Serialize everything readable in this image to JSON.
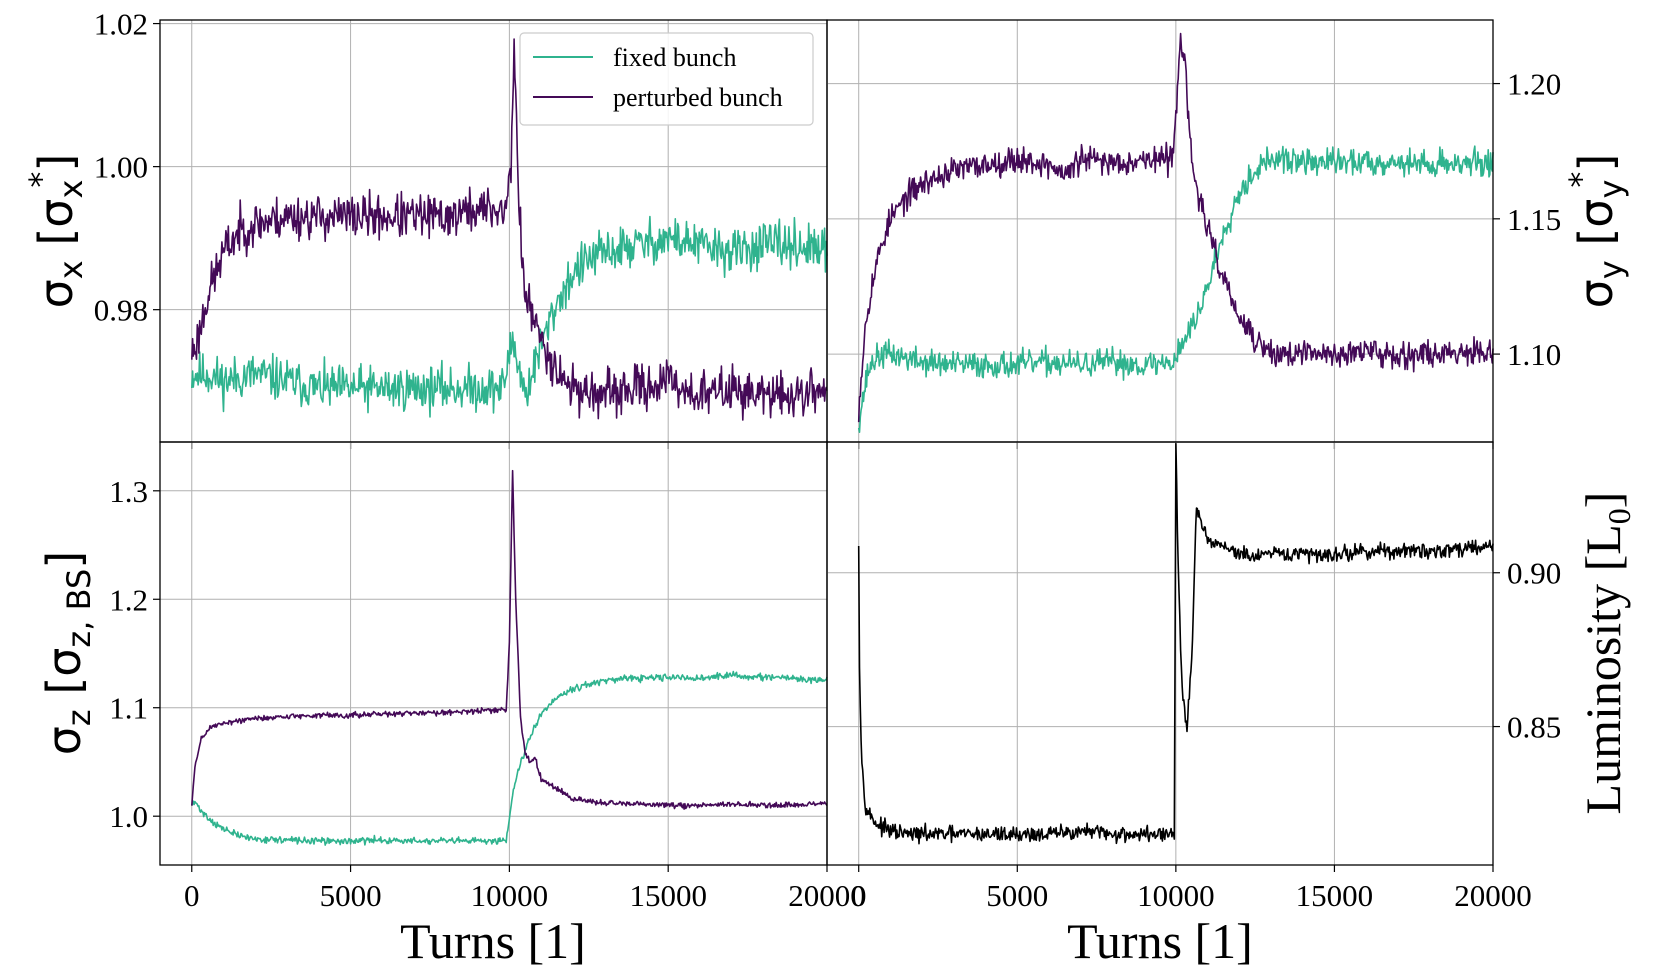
{
  "colors": {
    "fixed": "#2fb38e",
    "perturbed": "#440a57",
    "luminosity": "#000000"
  },
  "legend": {
    "fixed": "fixed bunch",
    "perturbed": "perturbed bunch"
  },
  "chart_data": [
    {
      "type": "line",
      "panel": "top-left",
      "ylabel_sym": "σ",
      "ylabel_sub": "x",
      "ylabel_unit": "σ",
      "ylabel_unit_sub": "x",
      "ylabel_unit_sup": "*",
      "xlim": [
        -1000,
        20000
      ],
      "ylim": [
        0.9615,
        1.0205
      ],
      "xticks": [
        0,
        5000,
        10000,
        15000,
        20000
      ],
      "yticks": [
        0.98,
        1.0,
        1.02
      ],
      "ytick_labels": [
        "0.98",
        "1.00",
        "1.02"
      ],
      "legend_position": "top-right",
      "series": [
        {
          "name": "fixed bunch",
          "color_key": "fixed",
          "x": [
            0,
            500,
            1000,
            2000,
            3000,
            4000,
            5000,
            6000,
            7000,
            8000,
            9000,
            9800,
            10100,
            10500,
            11000,
            11500,
            12000,
            12500,
            13000,
            14000,
            15000,
            16000,
            17000,
            18000,
            19000,
            20000
          ],
          "y": [
            0.971,
            0.971,
            0.97,
            0.971,
            0.97,
            0.969,
            0.969,
            0.969,
            0.969,
            0.969,
            0.969,
            0.969,
            0.976,
            0.968,
            0.975,
            0.981,
            0.985,
            0.987,
            0.988,
            0.989,
            0.99,
            0.989,
            0.988,
            0.989,
            0.989,
            0.988
          ],
          "noise": 0.0022,
          "seed": 11
        },
        {
          "name": "perturbed bunch",
          "color_key": "perturbed",
          "x": [
            0,
            200,
            500,
            1000,
            1500,
            2000,
            3000,
            4000,
            5000,
            6000,
            7000,
            8000,
            9000,
            9900,
            10050,
            10150,
            10300,
            10500,
            10800,
            11200,
            11600,
            12000,
            13000,
            14000,
            15000,
            16000,
            17000,
            18000,
            19000,
            20000
          ],
          "y": [
            0.974,
            0.976,
            0.982,
            0.988,
            0.991,
            0.992,
            0.993,
            0.993,
            0.993,
            0.993,
            0.993,
            0.993,
            0.994,
            0.994,
            1.0,
            1.018,
            0.994,
            0.982,
            0.978,
            0.974,
            0.971,
            0.969,
            0.968,
            0.969,
            0.97,
            0.968,
            0.969,
            0.968,
            0.968,
            0.969
          ],
          "noise": 0.0022,
          "seed": 23
        }
      ]
    },
    {
      "type": "line",
      "panel": "top-right",
      "ylabel_sym": "σ",
      "ylabel_sub": "y",
      "ylabel_unit": "σ",
      "ylabel_unit_sub": "y",
      "ylabel_unit_sup": "*",
      "xlim": [
        -1000,
        20000
      ],
      "ylim": [
        1.0675,
        1.2235
      ],
      "xticks": [
        0,
        5000,
        10000,
        15000,
        20000
      ],
      "yticks": [
        1.1,
        1.15,
        1.2
      ],
      "ytick_labels": [
        "1.10",
        "1.15",
        "1.20"
      ],
      "series": [
        {
          "name": "fixed bunch",
          "color_key": "fixed",
          "x": [
            0,
            150,
            300,
            500,
            800,
            1000,
            2000,
            3000,
            4000,
            5000,
            6000,
            7000,
            8000,
            9000,
            9900,
            10200,
            10600,
            11000,
            11500,
            12000,
            12500,
            13000,
            14000,
            15000,
            16000,
            17000,
            18000,
            19000,
            20000
          ],
          "y": [
            1.075,
            1.085,
            1.094,
            1.098,
            1.1,
            1.1,
            1.097,
            1.096,
            1.096,
            1.096,
            1.097,
            1.096,
            1.097,
            1.096,
            1.097,
            1.104,
            1.112,
            1.125,
            1.145,
            1.16,
            1.168,
            1.172,
            1.171,
            1.171,
            1.171,
            1.171,
            1.17,
            1.171,
            1.17
          ],
          "noise": 0.0035,
          "seed": 37
        },
        {
          "name": "perturbed bunch",
          "color_key": "perturbed",
          "x": [
            0,
            100,
            200,
            400,
            700,
            1000,
            1500,
            2000,
            3000,
            4000,
            5000,
            6000,
            6500,
            7000,
            8000,
            9000,
            9900,
            10050,
            10150,
            10300,
            10500,
            10800,
            11200,
            11700,
            12000,
            12500,
            13000,
            14000,
            15000,
            16000,
            17000,
            18000,
            19000,
            20000
          ],
          "y": [
            1.08,
            1.095,
            1.11,
            1.125,
            1.14,
            1.15,
            1.158,
            1.163,
            1.168,
            1.17,
            1.172,
            1.17,
            1.166,
            1.172,
            1.171,
            1.172,
            1.172,
            1.2,
            1.218,
            1.205,
            1.17,
            1.155,
            1.138,
            1.122,
            1.113,
            1.105,
            1.1,
            1.1,
            1.1,
            1.101,
            1.1,
            1.1,
            1.101,
            1.102
          ],
          "noise": 0.0035,
          "seed": 53
        }
      ]
    },
    {
      "type": "line",
      "panel": "bottom-left",
      "ylabel_sym": "σ",
      "ylabel_sub": "z",
      "ylabel_unit": "σ",
      "ylabel_unit_sub": "z, BS",
      "ylabel_unit_sup": "",
      "xlabel": "Turns [1]",
      "xlim": [
        -1000,
        20000
      ],
      "ylim": [
        0.955,
        1.345
      ],
      "xticks": [
        0,
        5000,
        10000,
        15000,
        20000
      ],
      "xtick_labels": [
        "0",
        "5000",
        "10000",
        "15000",
        "20000"
      ],
      "yticks": [
        1.0,
        1.1,
        1.2,
        1.3
      ],
      "ytick_labels": [
        "1.0",
        "1.1",
        "1.2",
        "1.3"
      ],
      "series": [
        {
          "name": "fixed bunch",
          "color_key": "fixed",
          "x": [
            0,
            100,
            300,
            600,
            1000,
            1500,
            2000,
            3000,
            4000,
            5000,
            6000,
            7000,
            8000,
            9000,
            9900,
            10100,
            10300,
            10600,
            11000,
            11500,
            12000,
            13000,
            14000,
            15000,
            16000,
            17000,
            18000,
            19000,
            20000
          ],
          "y": [
            1.01,
            1.013,
            1.005,
            0.996,
            0.988,
            0.982,
            0.979,
            0.978,
            0.977,
            0.977,
            0.978,
            0.977,
            0.977,
            0.977,
            0.978,
            1.02,
            1.045,
            1.07,
            1.095,
            1.11,
            1.118,
            1.125,
            1.127,
            1.128,
            1.127,
            1.13,
            1.128,
            1.127,
            1.125
          ],
          "noise": 0.0022,
          "seed": 71
        },
        {
          "name": "perturbed bunch",
          "color_key": "perturbed",
          "x": [
            0,
            100,
            300,
            600,
            1000,
            2000,
            3000,
            4000,
            5000,
            6000,
            7000,
            8000,
            9000,
            9900,
            10000,
            10100,
            10200,
            10350,
            10500,
            10650,
            10800,
            11000,
            11500,
            12000,
            13000,
            14000,
            15000,
            16000,
            17000,
            18000,
            19000,
            20000
          ],
          "y": [
            1.01,
            1.045,
            1.072,
            1.082,
            1.086,
            1.09,
            1.092,
            1.093,
            1.093,
            1.094,
            1.095,
            1.096,
            1.097,
            1.098,
            1.16,
            1.32,
            1.2,
            1.09,
            1.058,
            1.05,
            1.055,
            1.035,
            1.025,
            1.016,
            1.012,
            1.011,
            1.01,
            1.01,
            1.011,
            1.01,
            1.01,
            1.012
          ],
          "noise": 0.0018,
          "seed": 89
        }
      ]
    },
    {
      "type": "line",
      "panel": "bottom-right",
      "ylabel": "Luminosity [L",
      "ylabel_sub": "0",
      "ylabel_end": "]",
      "xlabel": "Turns [1]",
      "xlim": [
        -1000,
        20000
      ],
      "ylim": [
        0.805,
        0.9425
      ],
      "xticks": [
        0,
        5000,
        10000,
        15000,
        20000
      ],
      "xtick_labels": [
        "0",
        "5000",
        "10000",
        "15000",
        "20000"
      ],
      "yticks": [
        0.85,
        0.9
      ],
      "ytick_labels": [
        "0.85",
        "0.90"
      ],
      "series": [
        {
          "name": "luminosity",
          "color_key": "luminosity",
          "x": [
            0,
            20,
            60,
            120,
            200,
            300,
            450,
            600,
            800,
            1000,
            1500,
            2000,
            3000,
            4000,
            5000,
            6000,
            7000,
            8000,
            9000,
            9950,
            10000,
            10080,
            10200,
            10350,
            10500,
            10650,
            10800,
            11000,
            11500,
            12000,
            12500,
            13000,
            14000,
            15000,
            16000,
            17000,
            18000,
            19000,
            20000
          ],
          "y": [
            0.911,
            0.875,
            0.85,
            0.835,
            0.826,
            0.822,
            0.82,
            0.818,
            0.817,
            0.816,
            0.815,
            0.815,
            0.815,
            0.815,
            0.815,
            0.815,
            0.816,
            0.815,
            0.815,
            0.815,
            0.94,
            0.9,
            0.862,
            0.848,
            0.872,
            0.922,
            0.915,
            0.91,
            0.909,
            0.906,
            0.905,
            0.906,
            0.906,
            0.906,
            0.907,
            0.907,
            0.907,
            0.908,
            0.909
          ],
          "noise": 0.0018,
          "seed": 97
        }
      ]
    }
  ]
}
